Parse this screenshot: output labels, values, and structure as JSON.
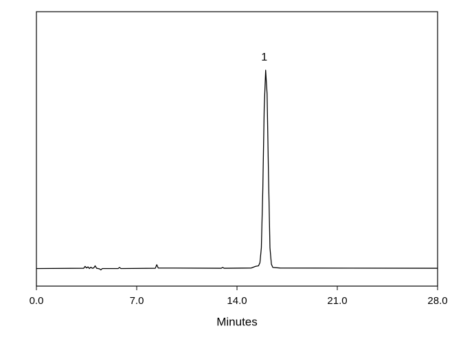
{
  "chart_data": {
    "type": "line",
    "x_label": "Minutes",
    "x": [
      0,
      3.3,
      3.4,
      3.5,
      3.6,
      3.7,
      3.8,
      3.9,
      4.0,
      4.1,
      4.2,
      4.4,
      4.5,
      4.6,
      5.7,
      5.8,
      5.9,
      8.3,
      8.4,
      8.5,
      12.9,
      13.0,
      13.1,
      15.0,
      15.3,
      15.5,
      15.6,
      15.7,
      15.8,
      15.9,
      16.0,
      16.1,
      16.2,
      16.3,
      16.4,
      16.5,
      17.0,
      28.0
    ],
    "series": [
      {
        "color": "#000000",
        "values": [
          6.4,
          6.5,
          7.2,
          6.6,
          7.0,
          6.4,
          6.9,
          6.5,
          6.6,
          7.4,
          6.5,
          6.3,
          5.9,
          6.4,
          6.4,
          6.8,
          6.4,
          6.5,
          7.8,
          6.6,
          6.5,
          6.8,
          6.5,
          6.6,
          7.2,
          7.4,
          8.5,
          14,
          35,
          65,
          78.7,
          70,
          40,
          14,
          8,
          6.8,
          6.6,
          6.5
        ]
      }
    ],
    "annotations": [
      {
        "text": "1",
        "x": 16.0,
        "y": 78.7
      }
    ],
    "xlim": [
      0,
      28
    ],
    "xticks": [
      {
        "value": 0,
        "label": "0.0"
      },
      {
        "value": 7,
        "label": "7.0"
      },
      {
        "value": 14,
        "label": "14.0"
      },
      {
        "value": 21,
        "label": "21.0"
      },
      {
        "value": 28,
        "label": "28.0"
      }
    ],
    "ylim": [
      0,
      100
    ]
  }
}
